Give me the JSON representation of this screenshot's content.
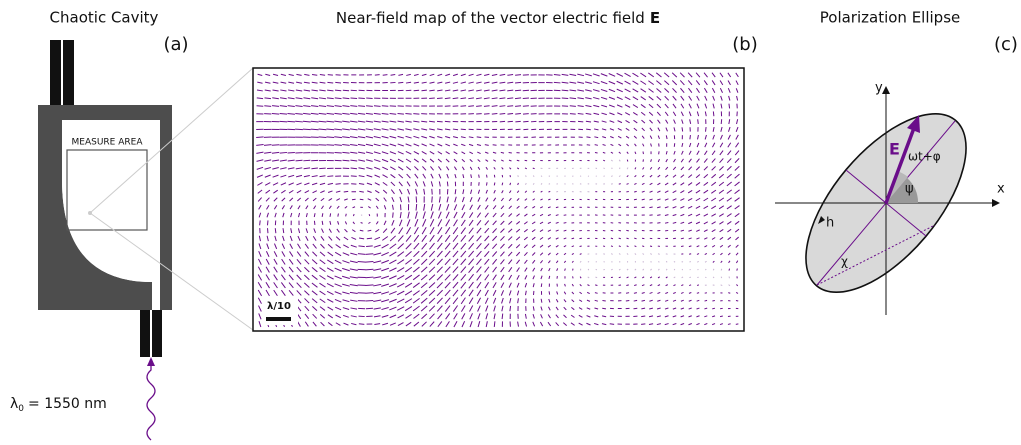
{
  "panels": {
    "a": {
      "title": "Chaotic Cavity",
      "label": "(a)",
      "measure_area": "MEASURE AREA",
      "wavelength": {
        "symbol": "λ",
        "subscript": "0",
        "text": "= 1550 nm"
      }
    },
    "b": {
      "title": "Near-field map of the vector electric field",
      "title_bold": "E",
      "label": "(b)",
      "scale_bar": "λ/10"
    },
    "c": {
      "title": "Polarization Ellipse",
      "label": "(c)",
      "axis_x": "x",
      "axis_y": "y",
      "field": "E",
      "phase": "ωt+φ",
      "psi": "ψ",
      "h": "h",
      "chi": "χ"
    }
  }
}
